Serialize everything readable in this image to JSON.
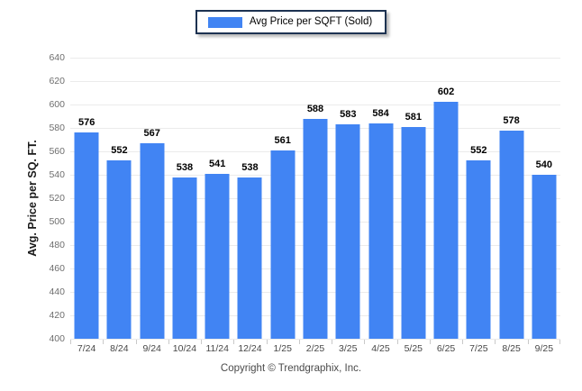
{
  "legend": {
    "label": "Avg Price per SQFT (Sold)"
  },
  "footer": {
    "text": "Copyright © Trendgraphix, Inc."
  },
  "colors": {
    "bar": "#4184F3",
    "legend_border": "#1d3251",
    "gridline": "#ebebeb",
    "tick": "#c9c9c9",
    "background": "#ffffff"
  },
  "chart_data": {
    "type": "bar",
    "title": "",
    "categories": [
      "7/24",
      "8/24",
      "9/24",
      "10/24",
      "11/24",
      "12/24",
      "1/25",
      "2/25",
      "3/25",
      "4/25",
      "5/25",
      "6/25",
      "7/25",
      "8/25",
      "9/25"
    ],
    "series": [
      {
        "name": "Avg Price per SQFT (Sold)",
        "values": [
          576,
          552,
          567,
          538,
          541,
          538,
          561,
          588,
          583,
          584,
          581,
          602,
          552,
          578,
          540
        ]
      }
    ],
    "data_labels": true,
    "xlabel": "",
    "ylabel": "Avg. Price per SQ. FT.",
    "ylim": [
      400,
      640
    ],
    "ytick_step": 20,
    "grid": "horizontal",
    "legend_position": "top-center"
  }
}
